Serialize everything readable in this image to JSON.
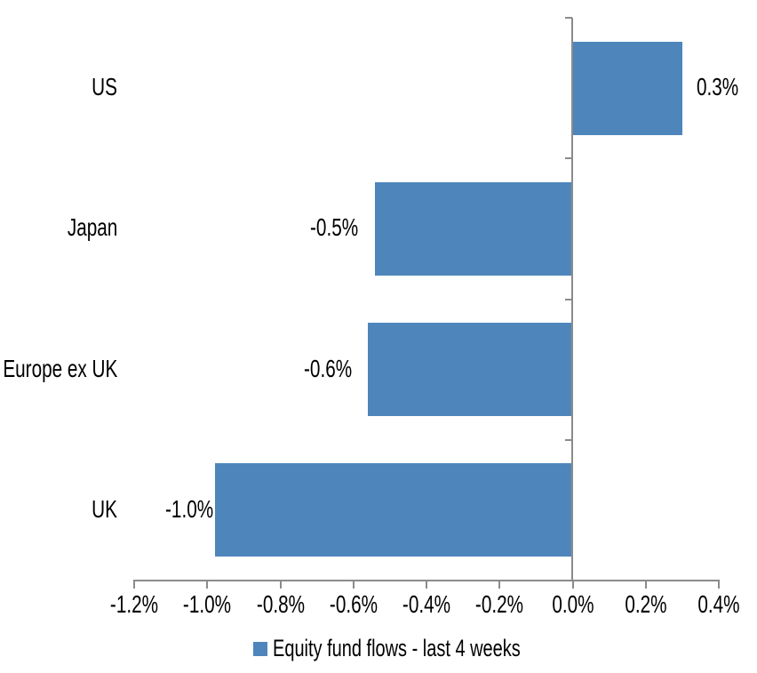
{
  "chart_data": {
    "type": "bar",
    "orientation": "horizontal",
    "title": "",
    "series_name": "Equity fund flows - last 4 weeks",
    "categories": [
      "US",
      "Japan",
      "Europe ex UK",
      "UK"
    ],
    "values": [
      0.3,
      -0.5,
      -0.6,
      -1.0
    ],
    "value_labels": [
      "0.3%",
      "-0.5%",
      "-0.6%",
      "-1.0%"
    ],
    "bar_extents_pct": [
      0.3,
      -0.54,
      -0.56,
      -0.98
    ],
    "x_tick_values": [
      -1.2,
      -1.0,
      -0.8,
      -0.6,
      -0.4,
      -0.2,
      0.0,
      0.2,
      0.4
    ],
    "x_tick_labels": [
      "-1.2%",
      "-1.0%",
      "-0.8%",
      "-0.6%",
      "-0.4%",
      "-0.2%",
      "0.0%",
      "0.2%",
      "0.4%"
    ],
    "xlim": [
      -1.2,
      0.4
    ],
    "grid": false,
    "legend_position": "bottom",
    "colors": {
      "bar": "#4E86BC",
      "axis": "#8B8B8B",
      "text": "#000000",
      "background": "#FFFFFF"
    }
  },
  "legend": {
    "label": "Equity fund flows - last 4 weeks"
  }
}
